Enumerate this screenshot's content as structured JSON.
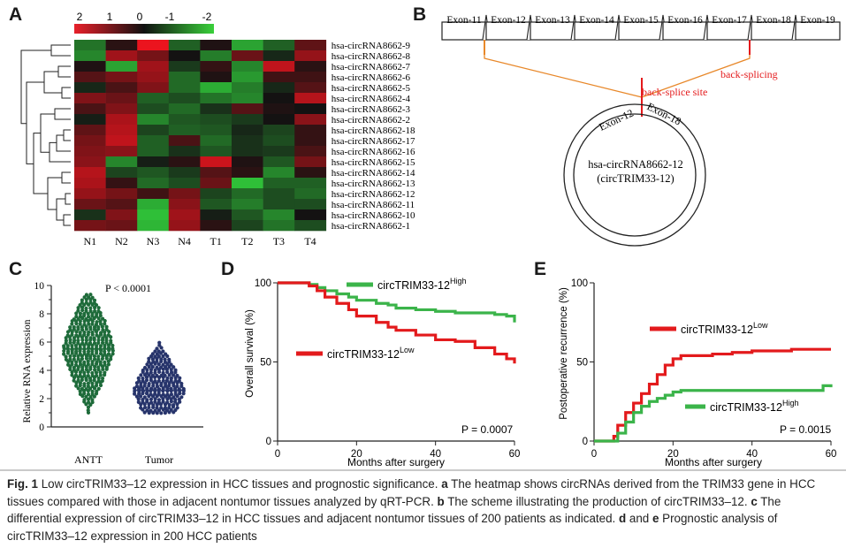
{
  "panels": {
    "a": {
      "letter": "A",
      "color_scale": [
        "2",
        "1",
        "0",
        "-1",
        "-2"
      ],
      "rows": [
        "hsa-circRNA8662-9",
        "hsa-circRNA8662-8",
        "hsa-circRNA8662-7",
        "hsa-circRNA8662-6",
        "hsa-circRNA8662-5",
        "hsa-circRNA8662-4",
        "hsa-circRNA8662-3",
        "hsa-circRNA8662-2",
        "hsa-circRNA8662-18",
        "hsa-circRNA8662-17",
        "hsa-circRNA8662-16",
        "hsa-circRNA8662-15",
        "hsa-circRNA8662-14",
        "hsa-circRNA8662-13",
        "hsa-circRNA8662-12",
        "hsa-circRNA8662-11",
        "hsa-circRNA8662-10",
        "hsa-circRNA8662-1"
      ],
      "columns": [
        "N1",
        "N2",
        "N3",
        "N4",
        "T1",
        "T2",
        "T3",
        "T4"
      ],
      "matrix": [
        [
          -1.0,
          0.2,
          2.0,
          -0.8,
          0.1,
          -1.5,
          -0.8,
          0.7
        ],
        [
          -1.2,
          1.3,
          0.9,
          0.0,
          -1.1,
          0.8,
          -0.2,
          1.2
        ],
        [
          0.1,
          -1.5,
          1.3,
          -0.4,
          0.3,
          -1.2,
          1.6,
          0.2
        ],
        [
          0.6,
          0.9,
          1.2,
          -0.9,
          0.1,
          -1.4,
          0.4,
          0.4
        ],
        [
          -0.2,
          0.5,
          1.0,
          -0.9,
          -1.6,
          -1.1,
          -0.2,
          0.6
        ],
        [
          1.0,
          0.8,
          -0.8,
          -0.6,
          -1.0,
          -1.2,
          0.0,
          1.5
        ],
        [
          0.5,
          1.0,
          -0.6,
          -0.9,
          -0.3,
          0.6,
          0.1,
          0.0
        ],
        [
          -0.1,
          1.4,
          -1.2,
          -0.7,
          -0.6,
          -0.4,
          0.0,
          1.1
        ],
        [
          0.7,
          1.5,
          -0.5,
          -0.8,
          -0.7,
          -0.2,
          -0.5,
          0.3
        ],
        [
          0.9,
          1.6,
          -0.8,
          0.5,
          -0.9,
          -0.3,
          -0.6,
          0.3
        ],
        [
          1.0,
          1.1,
          -0.8,
          -0.3,
          -0.7,
          -0.3,
          -0.4,
          0.5
        ],
        [
          1.1,
          -1.2,
          -0.1,
          0.2,
          1.7,
          0.1,
          -0.7,
          0.9
        ],
        [
          1.5,
          -0.5,
          -0.7,
          -0.4,
          0.6,
          0.2,
          -1.2,
          0.2
        ],
        [
          1.4,
          0.3,
          -0.9,
          -0.6,
          0.8,
          -1.8,
          -0.8,
          -0.8
        ],
        [
          1.2,
          0.9,
          0.4,
          0.9,
          -0.5,
          -0.9,
          -0.6,
          -0.9
        ],
        [
          0.8,
          0.6,
          -1.6,
          1.1,
          -0.7,
          -1.1,
          -0.6,
          -0.6
        ],
        [
          -0.3,
          1.0,
          -1.8,
          1.3,
          -0.1,
          -0.7,
          -1.2,
          0.0
        ],
        [
          0.9,
          0.8,
          -1.7,
          1.2,
          0.2,
          -0.5,
          -1.0,
          -0.6
        ]
      ]
    },
    "b": {
      "letter": "B",
      "exons": [
        "Exon-11",
        "Exon-12",
        "Exon-13",
        "Exon-14",
        "Exon-15",
        "Exon-16",
        "Exon-17",
        "Exon-18",
        "Exon-19"
      ],
      "back_splicing_label": "back-splicing",
      "site_label": "back-splice site",
      "circle_exon_left": "Exon-12",
      "circle_exon_right": "Exon-18",
      "circle_name": "hsa-circRNA8662-12",
      "circle_alias": "(circTRIM33-12)",
      "accent_red": "#e41a1c",
      "accent_orange": "#e8882a"
    },
    "c": {
      "letter": "C",
      "ylabel": "Relative RNA expression",
      "yticks": [
        "0",
        "2",
        "4",
        "6",
        "8",
        "10"
      ],
      "pvalue": "P < 0.0001",
      "groups": [
        "ANTT",
        "Tumor"
      ],
      "colors": [
        "#1e6b3a",
        "#27346b"
      ]
    },
    "d": {
      "letter": "D",
      "ylabel": "Overall survival (%)",
      "xlabel": "Months after surgery",
      "yticks": [
        "0",
        "50",
        "100"
      ],
      "xticks": [
        "0",
        "20",
        "40",
        "60"
      ],
      "series_high": "circTRIM33-12",
      "series_high_sup": "High",
      "series_low": "circTRIM33-12",
      "series_low_sup": "Low",
      "pvalue": "P = 0.0007"
    },
    "e": {
      "letter": "E",
      "ylabel": "Postoperative recurrence (%)",
      "xlabel": "Months after surgery",
      "yticks": [
        "0",
        "50",
        "100"
      ],
      "xticks": [
        "0",
        "20",
        "40",
        "60"
      ],
      "series_low": "circTRIM33-12",
      "series_low_sup": "Low",
      "series_high": "circTRIM33-12",
      "series_high_sup": "High",
      "pvalue": "P = 0.0015"
    }
  },
  "chart_data": [
    {
      "type": "scatter",
      "ylabel": "Relative RNA expression",
      "ylim": [
        0,
        10
      ],
      "categories": [
        "ANTT",
        "Tumor"
      ],
      "series": [
        {
          "name": "ANTT",
          "summary": {
            "min": 1.0,
            "max": 9.4,
            "center": 5.5
          }
        },
        {
          "name": "Tumor",
          "summary": {
            "min": 1.0,
            "max": 6.0,
            "center": 2.6
          }
        }
      ],
      "annotation": "P < 0.0001"
    },
    {
      "type": "line",
      "xlabel": "Months after surgery",
      "ylabel": "Overall survival (%)",
      "xlim": [
        0,
        60
      ],
      "ylim": [
        0,
        100
      ],
      "series": [
        {
          "name": "circTRIM33-12 High",
          "x": [
            0,
            5,
            8,
            10,
            12,
            15,
            18,
            20,
            25,
            28,
            30,
            35,
            40,
            45,
            50,
            55,
            58,
            60
          ],
          "y": [
            100,
            100,
            99,
            97,
            95,
            93,
            91,
            89,
            87,
            86,
            84,
            83,
            82,
            81,
            81,
            80,
            79,
            75
          ]
        },
        {
          "name": "circTRIM33-12 Low",
          "x": [
            0,
            5,
            8,
            10,
            12,
            15,
            18,
            20,
            25,
            28,
            30,
            35,
            40,
            45,
            50,
            55,
            58,
            60
          ],
          "y": [
            100,
            100,
            98,
            95,
            91,
            87,
            83,
            79,
            75,
            72,
            70,
            67,
            64,
            63,
            59,
            55,
            52,
            49
          ]
        }
      ],
      "annotation": "P = 0.0007"
    },
    {
      "type": "line",
      "xlabel": "Months after surgery",
      "ylabel": "Postoperative recurrence (%)",
      "xlim": [
        0,
        60
      ],
      "ylim": [
        0,
        100
      ],
      "series": [
        {
          "name": "circTRIM33-12 Low",
          "x": [
            0,
            4,
            5,
            6,
            8,
            10,
            12,
            14,
            16,
            18,
            20,
            22,
            25,
            30,
            35,
            40,
            45,
            50,
            55,
            60
          ],
          "y": [
            0,
            0,
            3,
            10,
            18,
            24,
            30,
            36,
            42,
            48,
            52,
            54,
            54,
            55,
            56,
            57,
            57,
            58,
            58,
            58
          ]
        },
        {
          "name": "circTRIM33-12 High",
          "x": [
            0,
            4,
            5,
            6,
            8,
            10,
            12,
            14,
            16,
            18,
            20,
            22,
            25,
            30,
            35,
            40,
            45,
            50,
            55,
            58,
            60
          ],
          "y": [
            0,
            0,
            0,
            5,
            12,
            18,
            22,
            25,
            27,
            29,
            31,
            32,
            32,
            32,
            32,
            32,
            32,
            32,
            32,
            35,
            34
          ]
        }
      ],
      "annotation": "P = 0.0015"
    }
  ],
  "caption": {
    "lead": "Fig. 1",
    "title": " Low circTRIM33–12 expression in HCC tissues and prognostic significance. ",
    "a_letter": "a",
    "a_text": " The heatmap shows circRNAs derived from the TRIM33 gene in HCC tissues compared with those in adjacent nontumor tissues analyzed by qRT-PCR. ",
    "b_letter": "b",
    "b_text": " The scheme illustrating the production of circTRIM33–12. ",
    "c_letter": "c",
    "c_text": " The differential expression of circTRIM33–12 in HCC tissues and adjacent nontumor tissues of 200 patients as indicated. ",
    "d_letter": "d",
    "and_text": " and ",
    "e_letter": "e",
    "de_text": " Prognostic analysis of circTRIM33–12 expression in 200 HCC patients"
  }
}
